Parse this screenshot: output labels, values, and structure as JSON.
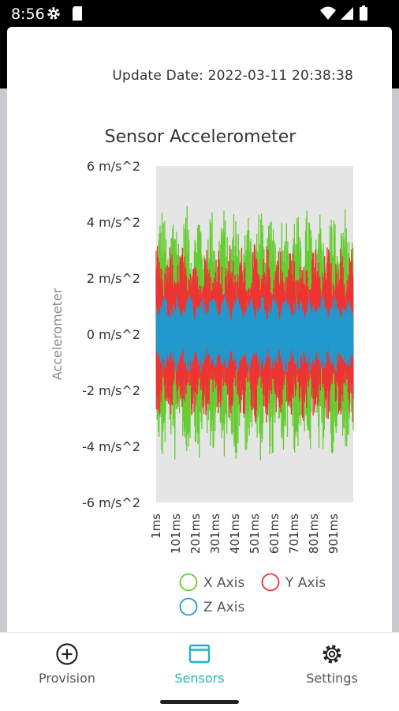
{
  "status_bar": {
    "time": "8:56",
    "icons": [
      "gear-icon",
      "sd-card-icon",
      "wifi-icon",
      "signal-icon",
      "battery-icon"
    ]
  },
  "header": {
    "update_date": "Update Date: 2022-03-11 20:38:38"
  },
  "chart_data": {
    "type": "line",
    "title": "Sensor Accelerometer",
    "ylabel": "Accelerometer",
    "xlabel": "",
    "ylim": [
      -6,
      6
    ],
    "y_ticks": [
      "6 m/s^2",
      "4 m/s^2",
      "2 m/s^2",
      "0 m/s^2",
      "-2 m/s^2",
      "-4 m/s^2",
      "-6 m/s^2"
    ],
    "y_tick_values": [
      6,
      4,
      2,
      0,
      -2,
      -4,
      -6
    ],
    "x_ticks": [
      "1ms",
      "101ms",
      "201ms",
      "301ms",
      "401ms",
      "501ms",
      "601ms",
      "701ms",
      "801ms",
      "901ms"
    ],
    "xlim": [
      1,
      1000
    ],
    "plot_background": "#e5e5e5",
    "legend_placement": "bottom",
    "series": [
      {
        "name": "X Axis",
        "color": "#66cc33",
        "amplitude": 4.6
      },
      {
        "name": "Y Axis",
        "color": "#ee3333",
        "amplitude": 3.2
      },
      {
        "name": "Z Axis",
        "color": "#2299cc",
        "amplitude": 1.4
      }
    ]
  },
  "bottom_nav": {
    "items": [
      {
        "label": "Provision",
        "icon": "add-circle-icon"
      },
      {
        "label": "Sensors",
        "icon": "window-icon"
      },
      {
        "label": "Settings",
        "icon": "gear-icon"
      }
    ],
    "active_color": "#1fb6c1"
  }
}
